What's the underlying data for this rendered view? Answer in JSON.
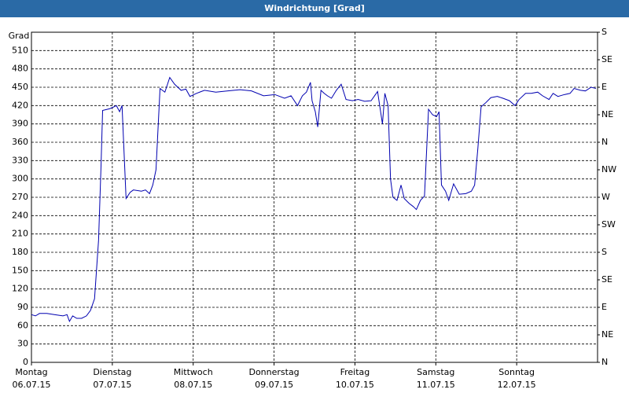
{
  "chart_data": {
    "type": "line",
    "title": "Windrichtung [Grad]",
    "y_label": "Grad",
    "xlim": [
      0,
      7
    ],
    "xticks": [
      {
        "value": 0,
        "label": "Montag",
        "date": "06.07.15"
      },
      {
        "value": 1,
        "label": "Dienstag",
        "date": "07.07.15"
      },
      {
        "value": 2,
        "label": "Mittwoch",
        "date": "08.07.15"
      },
      {
        "value": 3,
        "label": "Donnerstag",
        "date": "09.07.15"
      },
      {
        "value": 4,
        "label": "Freitag",
        "date": "10.07.15"
      },
      {
        "value": 5,
        "label": "Samstag",
        "date": "11.07.15"
      },
      {
        "value": 6,
        "label": "Sonntag",
        "date": "12.07.15"
      }
    ],
    "ylim": [
      0,
      540
    ],
    "yticks": [
      0,
      30,
      60,
      90,
      120,
      150,
      180,
      210,
      240,
      270,
      300,
      330,
      360,
      390,
      420,
      450,
      480,
      510
    ],
    "y2lim": [
      0,
      540
    ],
    "y2ticks": [
      {
        "value": 0,
        "label": "N"
      },
      {
        "value": 45,
        "label": "NE"
      },
      {
        "value": 90,
        "label": "E"
      },
      {
        "value": 135,
        "label": "SE"
      },
      {
        "value": 180,
        "label": "S"
      },
      {
        "value": 225,
        "label": "SW"
      },
      {
        "value": 270,
        "label": "W"
      },
      {
        "value": 315,
        "label": "NW"
      },
      {
        "value": 360,
        "label": "N"
      },
      {
        "value": 405,
        "label": "NE"
      },
      {
        "value": 450,
        "label": "E"
      },
      {
        "value": 495,
        "label": "SE"
      },
      {
        "value": 540,
        "label": "S"
      }
    ],
    "grid": true,
    "color": "#0000b0",
    "x": [
      0,
      0.05,
      0.1,
      0.19,
      0.29,
      0.39,
      0.44,
      0.47,
      0.51,
      0.56,
      0.62,
      0.68,
      0.73,
      0.78,
      0.83,
      0.86,
      0.88,
      0.97,
      1.02,
      1.05,
      1.09,
      1.12,
      1.17,
      1.22,
      1.26,
      1.36,
      1.41,
      1.46,
      1.5,
      1.54,
      1.59,
      1.65,
      1.71,
      1.77,
      1.85,
      1.91,
      1.96,
      2.04,
      2.14,
      2.28,
      2.43,
      2.58,
      2.72,
      2.87,
      3.01,
      3.13,
      3.21,
      3.29,
      3.35,
      3.4,
      3.45,
      3.47,
      3.51,
      3.54,
      3.58,
      3.62,
      3.66,
      3.71,
      3.77,
      3.83,
      3.89,
      3.97,
      4.04,
      4.12,
      4.2,
      4.28,
      4.34,
      4.37,
      4.41,
      4.44,
      4.47,
      4.52,
      4.57,
      4.61,
      4.67,
      4.72,
      4.76,
      4.81,
      4.86,
      4.91,
      4.96,
      5.01,
      5.04,
      5.07,
      5.12,
      5.16,
      5.22,
      5.29,
      5.37,
      5.44,
      5.48,
      5.52,
      5.56,
      5.62,
      5.68,
      5.76,
      5.83,
      5.91,
      5.98,
      6.03,
      6.11,
      6.18,
      6.26,
      6.32,
      6.4,
      6.45,
      6.51,
      6.59,
      6.66,
      6.71,
      6.79,
      6.85,
      6.92,
      6.98
    ],
    "values": [
      78,
      76,
      80,
      80,
      78,
      76,
      78,
      67,
      76,
      72,
      72,
      76,
      85,
      104,
      200,
      320,
      412,
      415,
      418,
      420,
      410,
      420,
      268,
      278,
      282,
      280,
      282,
      276,
      290,
      315,
      448,
      442,
      466,
      455,
      445,
      447,
      435,
      440,
      445,
      442,
      444,
      446,
      444,
      436,
      438,
      432,
      436,
      420,
      436,
      442,
      458,
      428,
      410,
      385,
      445,
      440,
      436,
      432,
      445,
      455,
      430,
      428,
      430,
      427,
      428,
      443,
      390,
      440,
      420,
      300,
      270,
      265,
      290,
      268,
      260,
      255,
      250,
      265,
      272,
      414,
      405,
      402,
      410,
      290,
      280,
      265,
      292,
      275,
      276,
      280,
      290,
      350,
      418,
      425,
      433,
      435,
      432,
      428,
      420,
      430,
      440,
      440,
      442,
      436,
      430,
      440,
      435,
      438,
      440,
      448,
      445,
      444,
      450,
      448
    ]
  }
}
